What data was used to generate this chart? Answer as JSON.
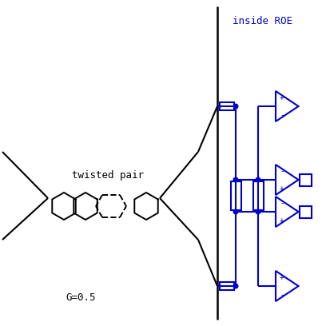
{
  "bg_color": "#ffffff",
  "black_color": "#000000",
  "blue_color": "#0000cc",
  "title_text": "inside ROE",
  "label_twisted": "twisted pair",
  "label_gain": "G=0.5",
  "figsize": [
    4.08,
    4.08
  ],
  "dpi": 100
}
